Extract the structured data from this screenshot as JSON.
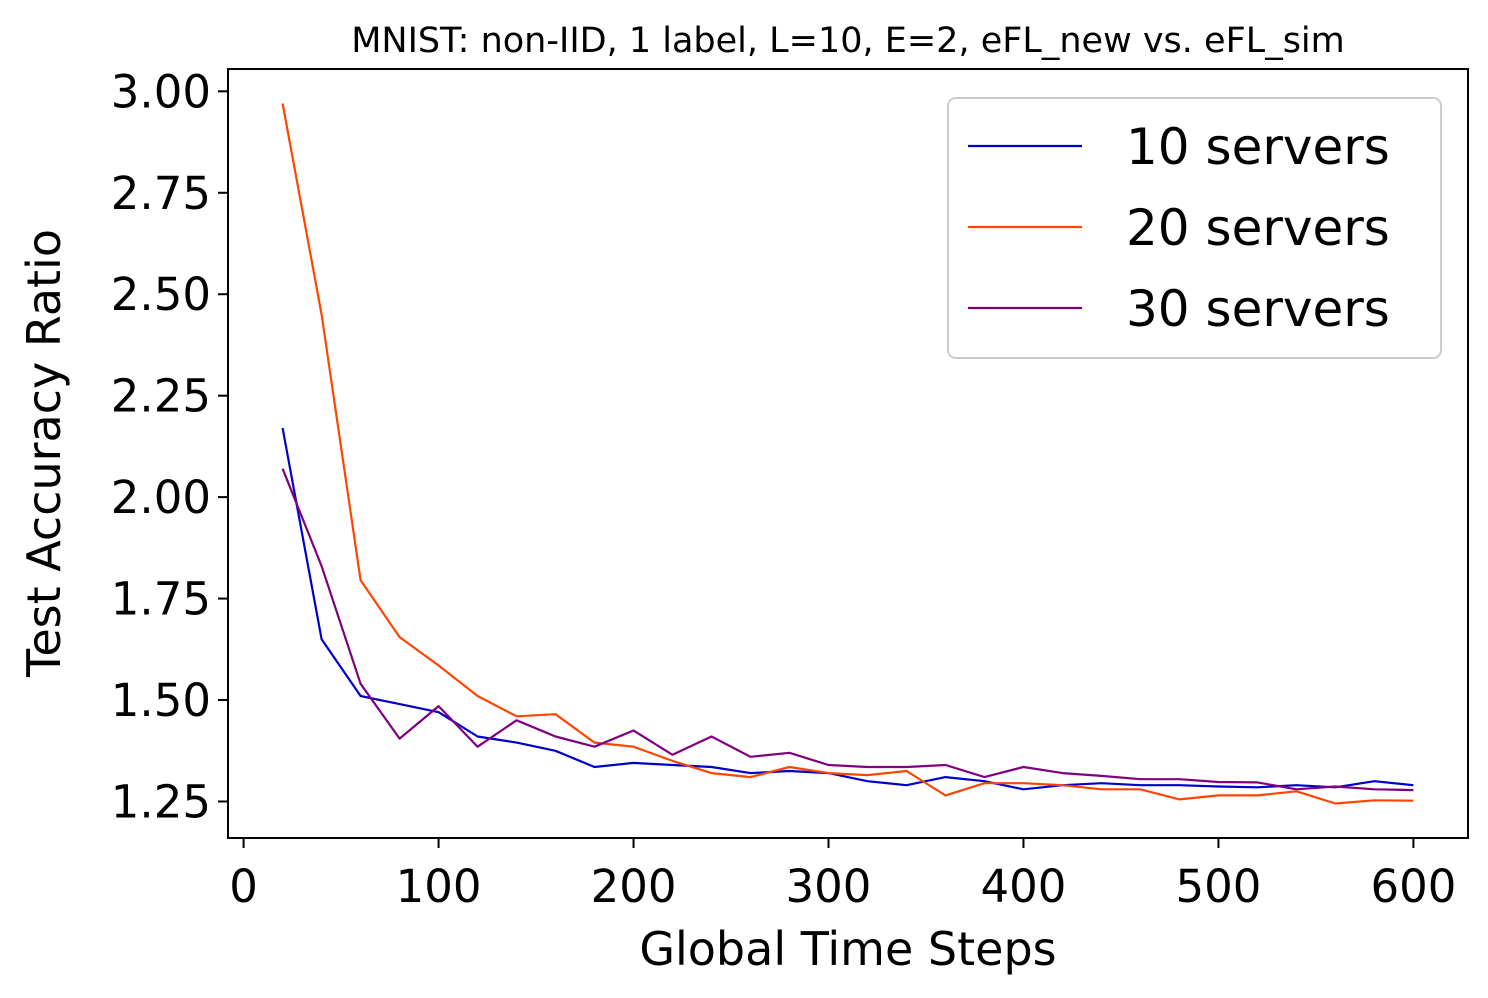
{
  "chart_data": {
    "type": "line",
    "title": "MNIST: non-IID, 1 label, L=10, E=2, eFL_new vs. eFL_sim",
    "xlabel": "Global Time Steps",
    "ylabel": "Test Accuracy Ratio",
    "xlim": [
      -8,
      628
    ],
    "ylim": [
      1.16,
      3.055
    ],
    "xticks": [
      0,
      100,
      200,
      300,
      400,
      500,
      600
    ],
    "xtick_labels": [
      "0",
      "100",
      "200",
      "300",
      "400",
      "500",
      "600"
    ],
    "yticks": [
      1.25,
      1.5,
      1.75,
      2.0,
      2.25,
      2.5,
      2.75,
      3.0
    ],
    "ytick_labels": [
      "1.25",
      "1.50",
      "1.75",
      "2.00",
      "2.25",
      "2.50",
      "2.75",
      "3.00"
    ],
    "grid": false,
    "legend_position": "upper-right",
    "x": [
      20,
      40,
      60,
      80,
      100,
      120,
      140,
      160,
      180,
      200,
      220,
      240,
      260,
      280,
      300,
      320,
      340,
      360,
      380,
      400,
      420,
      440,
      460,
      480,
      500,
      520,
      540,
      560,
      580,
      600
    ],
    "series": [
      {
        "name": "10 servers",
        "color": "#0000cd",
        "values": [
          2.17,
          1.65,
          1.51,
          1.49,
          1.47,
          1.41,
          1.395,
          1.375,
          1.335,
          1.345,
          1.34,
          1.335,
          1.32,
          1.325,
          1.32,
          1.3,
          1.29,
          1.31,
          1.3,
          1.28,
          1.29,
          1.295,
          1.29,
          1.29,
          1.287,
          1.285,
          1.29,
          1.285,
          1.3,
          1.29
        ]
      },
      {
        "name": "20 servers",
        "color": "#ff4500",
        "values": [
          2.97,
          2.45,
          1.795,
          1.655,
          1.585,
          1.51,
          1.46,
          1.465,
          1.395,
          1.385,
          1.35,
          1.32,
          1.31,
          1.335,
          1.32,
          1.315,
          1.325,
          1.265,
          1.295,
          1.295,
          1.29,
          1.28,
          1.28,
          1.255,
          1.265,
          1.265,
          1.275,
          1.245,
          1.253,
          1.252
        ]
      },
      {
        "name": "30 servers",
        "color": "#800080",
        "values": [
          2.07,
          1.83,
          1.54,
          1.405,
          1.485,
          1.385,
          1.45,
          1.41,
          1.385,
          1.425,
          1.365,
          1.41,
          1.36,
          1.37,
          1.34,
          1.335,
          1.335,
          1.34,
          1.31,
          1.335,
          1.32,
          1.313,
          1.305,
          1.305,
          1.298,
          1.297,
          1.28,
          1.287,
          1.28,
          1.278
        ]
      }
    ]
  }
}
